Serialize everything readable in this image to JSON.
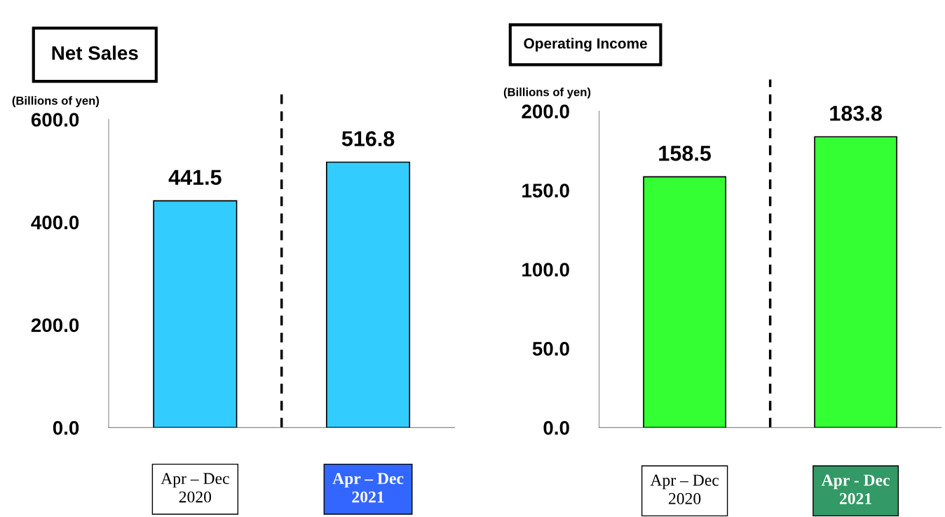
{
  "chart_data": [
    {
      "type": "bar",
      "title": "Net Sales",
      "ylabel": "(Billions of yen)",
      "categories": [
        "Apr – Dec\n2020",
        "Apr – Dec\n2021"
      ],
      "values": [
        441.5,
        516.8
      ],
      "color": "#33ccff",
      "ylim": [
        0,
        600
      ],
      "yticks": [
        {
          "value": 0,
          "label": "0.0"
        },
        {
          "value": 200,
          "label": "200.0"
        },
        {
          "value": 400,
          "label": "400.0"
        },
        {
          "value": 600,
          "label": "600.0"
        }
      ],
      "data_labels": true,
      "grid": false,
      "legend": false
    },
    {
      "type": "bar",
      "title": "Operating Income",
      "ylabel": "(Billions of yen)",
      "categories": [
        "Apr – Dec\n2020",
        "Apr - Dec\n2021"
      ],
      "values": [
        158.5,
        183.8
      ],
      "color": "#33ff33",
      "ylim": [
        0,
        200
      ],
      "yticks": [
        {
          "value": 0,
          "label": "0.0"
        },
        {
          "value": 50,
          "label": "50.0"
        },
        {
          "value": 100,
          "label": "100.0"
        },
        {
          "value": 150,
          "label": "150.0"
        },
        {
          "value": 200,
          "label": "200.0"
        }
      ],
      "data_labels": true,
      "grid": false,
      "legend": false
    }
  ]
}
